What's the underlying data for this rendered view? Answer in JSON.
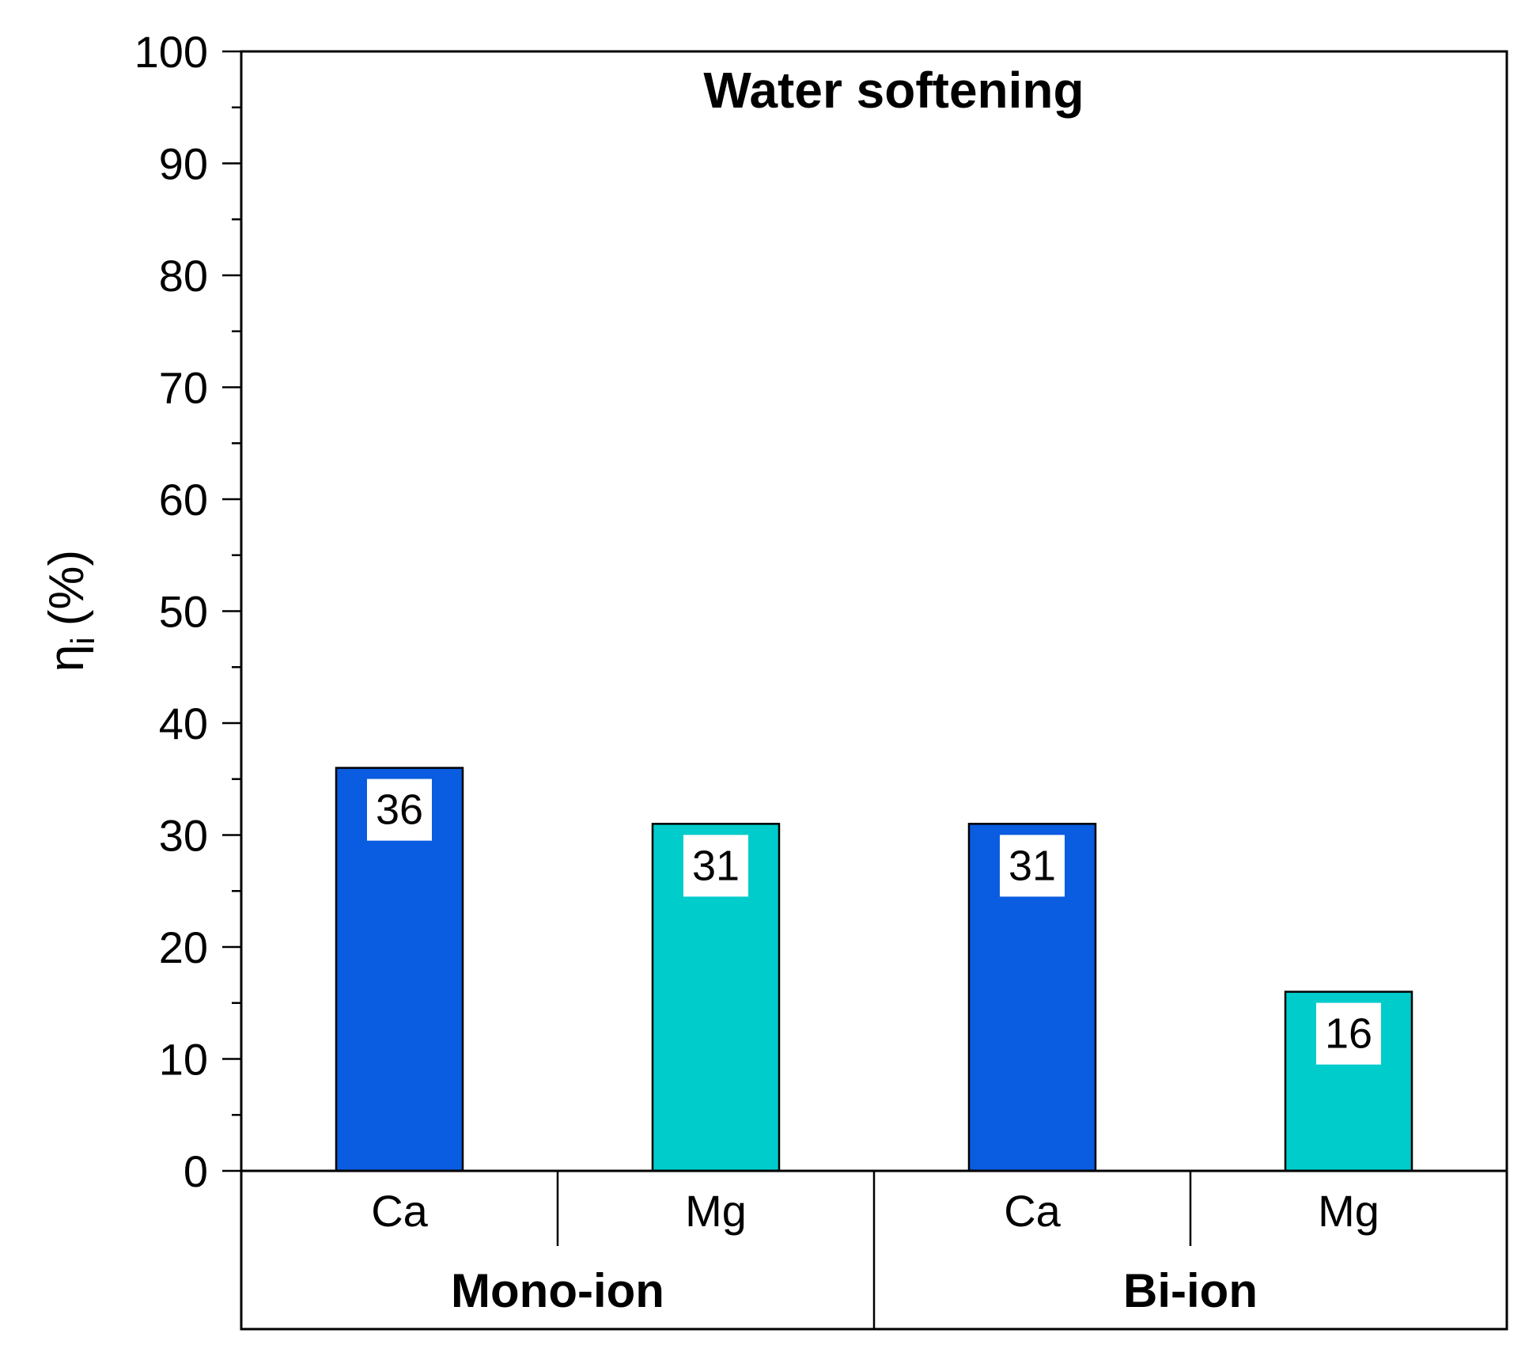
{
  "chart_data": {
    "type": "bar",
    "title": "Water softening",
    "ylabel": "η",
    "ylabel_subscript": "i",
    "ylabel_unit": "(%)",
    "ylim": [
      0,
      100
    ],
    "y_major_ticks": [
      0,
      10,
      20,
      30,
      40,
      50,
      60,
      70,
      80,
      90,
      100
    ],
    "y_tick_labels": [
      "0",
      "10",
      "20",
      "30",
      "40",
      "50",
      "60",
      "70",
      "80",
      "90",
      "100"
    ],
    "y_minor_step": 5,
    "grid": false,
    "categories": [
      "Ca",
      "Mg",
      "Ca",
      "Mg"
    ],
    "groups": [
      {
        "label": "Mono-ion",
        "categories": [
          0,
          1
        ]
      },
      {
        "label": "Bi-ion",
        "categories": [
          2,
          3
        ]
      }
    ],
    "values": [
      36,
      31,
      31,
      16
    ],
    "data_labels": [
      "36",
      "31",
      "31",
      "16"
    ],
    "bar_colors": [
      "#0a5ce0",
      "#00cccc",
      "#0a5ce0",
      "#00cccc"
    ],
    "colors": {
      "Ca": "#0a5ce0",
      "Mg": "#00cccc",
      "axis": "#000000",
      "label_box": "#ffffff"
    }
  }
}
